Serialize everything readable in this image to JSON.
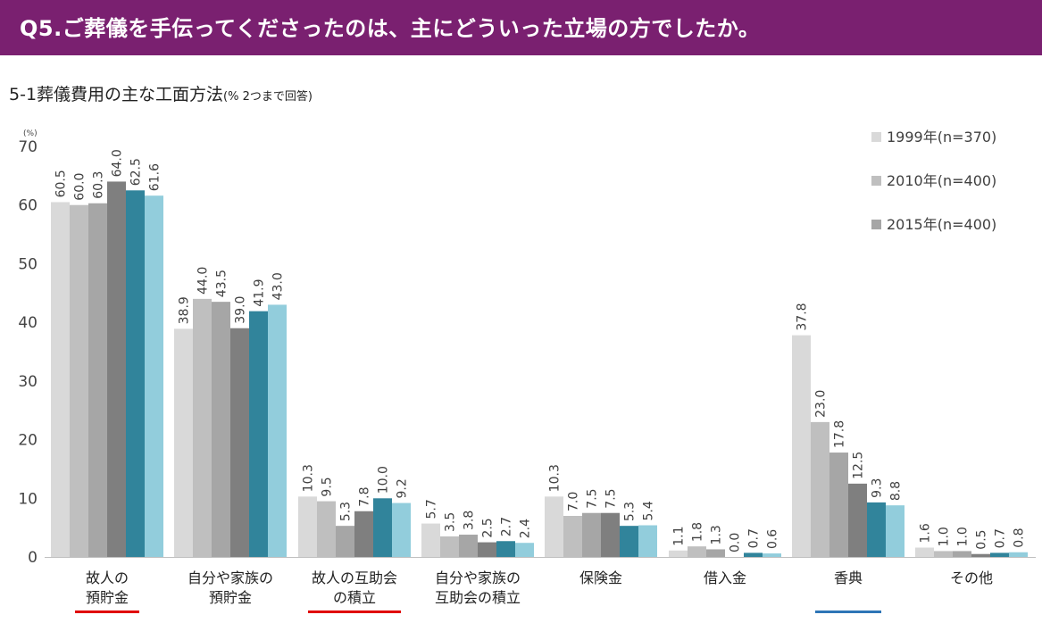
{
  "header": {
    "question": "Q5.ご葬儀を手伝ってくださったのは、主にどういった立場の方でしたか。"
  },
  "subtitle": {
    "main": "5-1葬儀費用の主な工面方法",
    "note": "(% 2つまで回答)"
  },
  "colors": {
    "banner": "#7a2070",
    "series": [
      "#d9d9d9",
      "#bfbfbf",
      "#a6a6a6",
      "#7f7f7f",
      "#31849b",
      "#92cddc"
    ],
    "underline_red": "#e00000",
    "underline_teal": "#2e75b6"
  },
  "chart_data": {
    "type": "bar",
    "unit_label": "(%)",
    "ylim": [
      0,
      70
    ],
    "yticks": [
      0,
      10,
      20,
      30,
      40,
      50,
      60,
      70
    ],
    "grid": false,
    "legend_position": "top-right",
    "categories": [
      [
        "故人の",
        "預貯金"
      ],
      [
        "自分や家族の",
        "預貯金"
      ],
      [
        "故人の互助会",
        "の積立"
      ],
      [
        "自分や家族の",
        "互助会の積立"
      ],
      [
        "保険金"
      ],
      [
        "借入金"
      ],
      [
        "香典"
      ],
      [
        "その他"
      ]
    ],
    "underlines": [
      {
        "category_index": 0,
        "color": "#e00000"
      },
      {
        "category_index": 2,
        "color": "#e00000"
      },
      {
        "category_index": 6,
        "color": "#2e75b6"
      }
    ],
    "series": [
      {
        "name": "1999年(n=370)",
        "values": [
          60.5,
          38.9,
          10.3,
          5.7,
          10.3,
          1.1,
          37.8,
          1.6
        ],
        "labels": [
          "60.5",
          "38.9",
          "10.3",
          "5.7",
          "10.3",
          "1.1",
          "37.8",
          "1.6"
        ]
      },
      {
        "name": "2010年(n=400)",
        "values": [
          60.0,
          44.0,
          9.5,
          3.5,
          7.0,
          1.8,
          23.0,
          1.0
        ],
        "labels": [
          "60.0",
          "44.0",
          "9.5",
          "3.5",
          "7.0",
          "1.8",
          "23.0",
          "1.0"
        ]
      },
      {
        "name": "2015年(n=400)",
        "values": [
          60.3,
          43.5,
          5.3,
          3.8,
          7.5,
          1.3,
          17.8,
          1.0
        ],
        "labels": [
          "60.3",
          "43.5",
          "5.3",
          "3.8",
          "7.5",
          "1.3",
          "17.8",
          "1.0"
        ]
      },
      {
        "name": "",
        "values": [
          64.0,
          39.0,
          7.8,
          2.5,
          7.5,
          0.0,
          12.5,
          0.5
        ],
        "labels": [
          "64.0",
          "39.0",
          "7.8",
          "2.5",
          "7.5",
          "0.0",
          "12.5",
          "0.5"
        ]
      },
      {
        "name": "",
        "values": [
          62.5,
          41.9,
          10.0,
          2.7,
          5.3,
          0.7,
          9.3,
          0.7
        ],
        "labels": [
          "62.5",
          "41.9",
          "10.0",
          "2.7",
          "5.3",
          "0.7",
          "9.3",
          "0.7"
        ]
      },
      {
        "name": "",
        "values": [
          61.6,
          43.0,
          9.2,
          2.4,
          5.4,
          0.6,
          8.8,
          0.8
        ],
        "labels": [
          "61.6",
          "43.0",
          "9.2",
          "2.4",
          "5.4",
          "0.6",
          "8.8",
          "0.8"
        ]
      }
    ],
    "legend": [
      "1999年(n=370)",
      "2010年(n=400)",
      "2015年(n=400)"
    ]
  }
}
